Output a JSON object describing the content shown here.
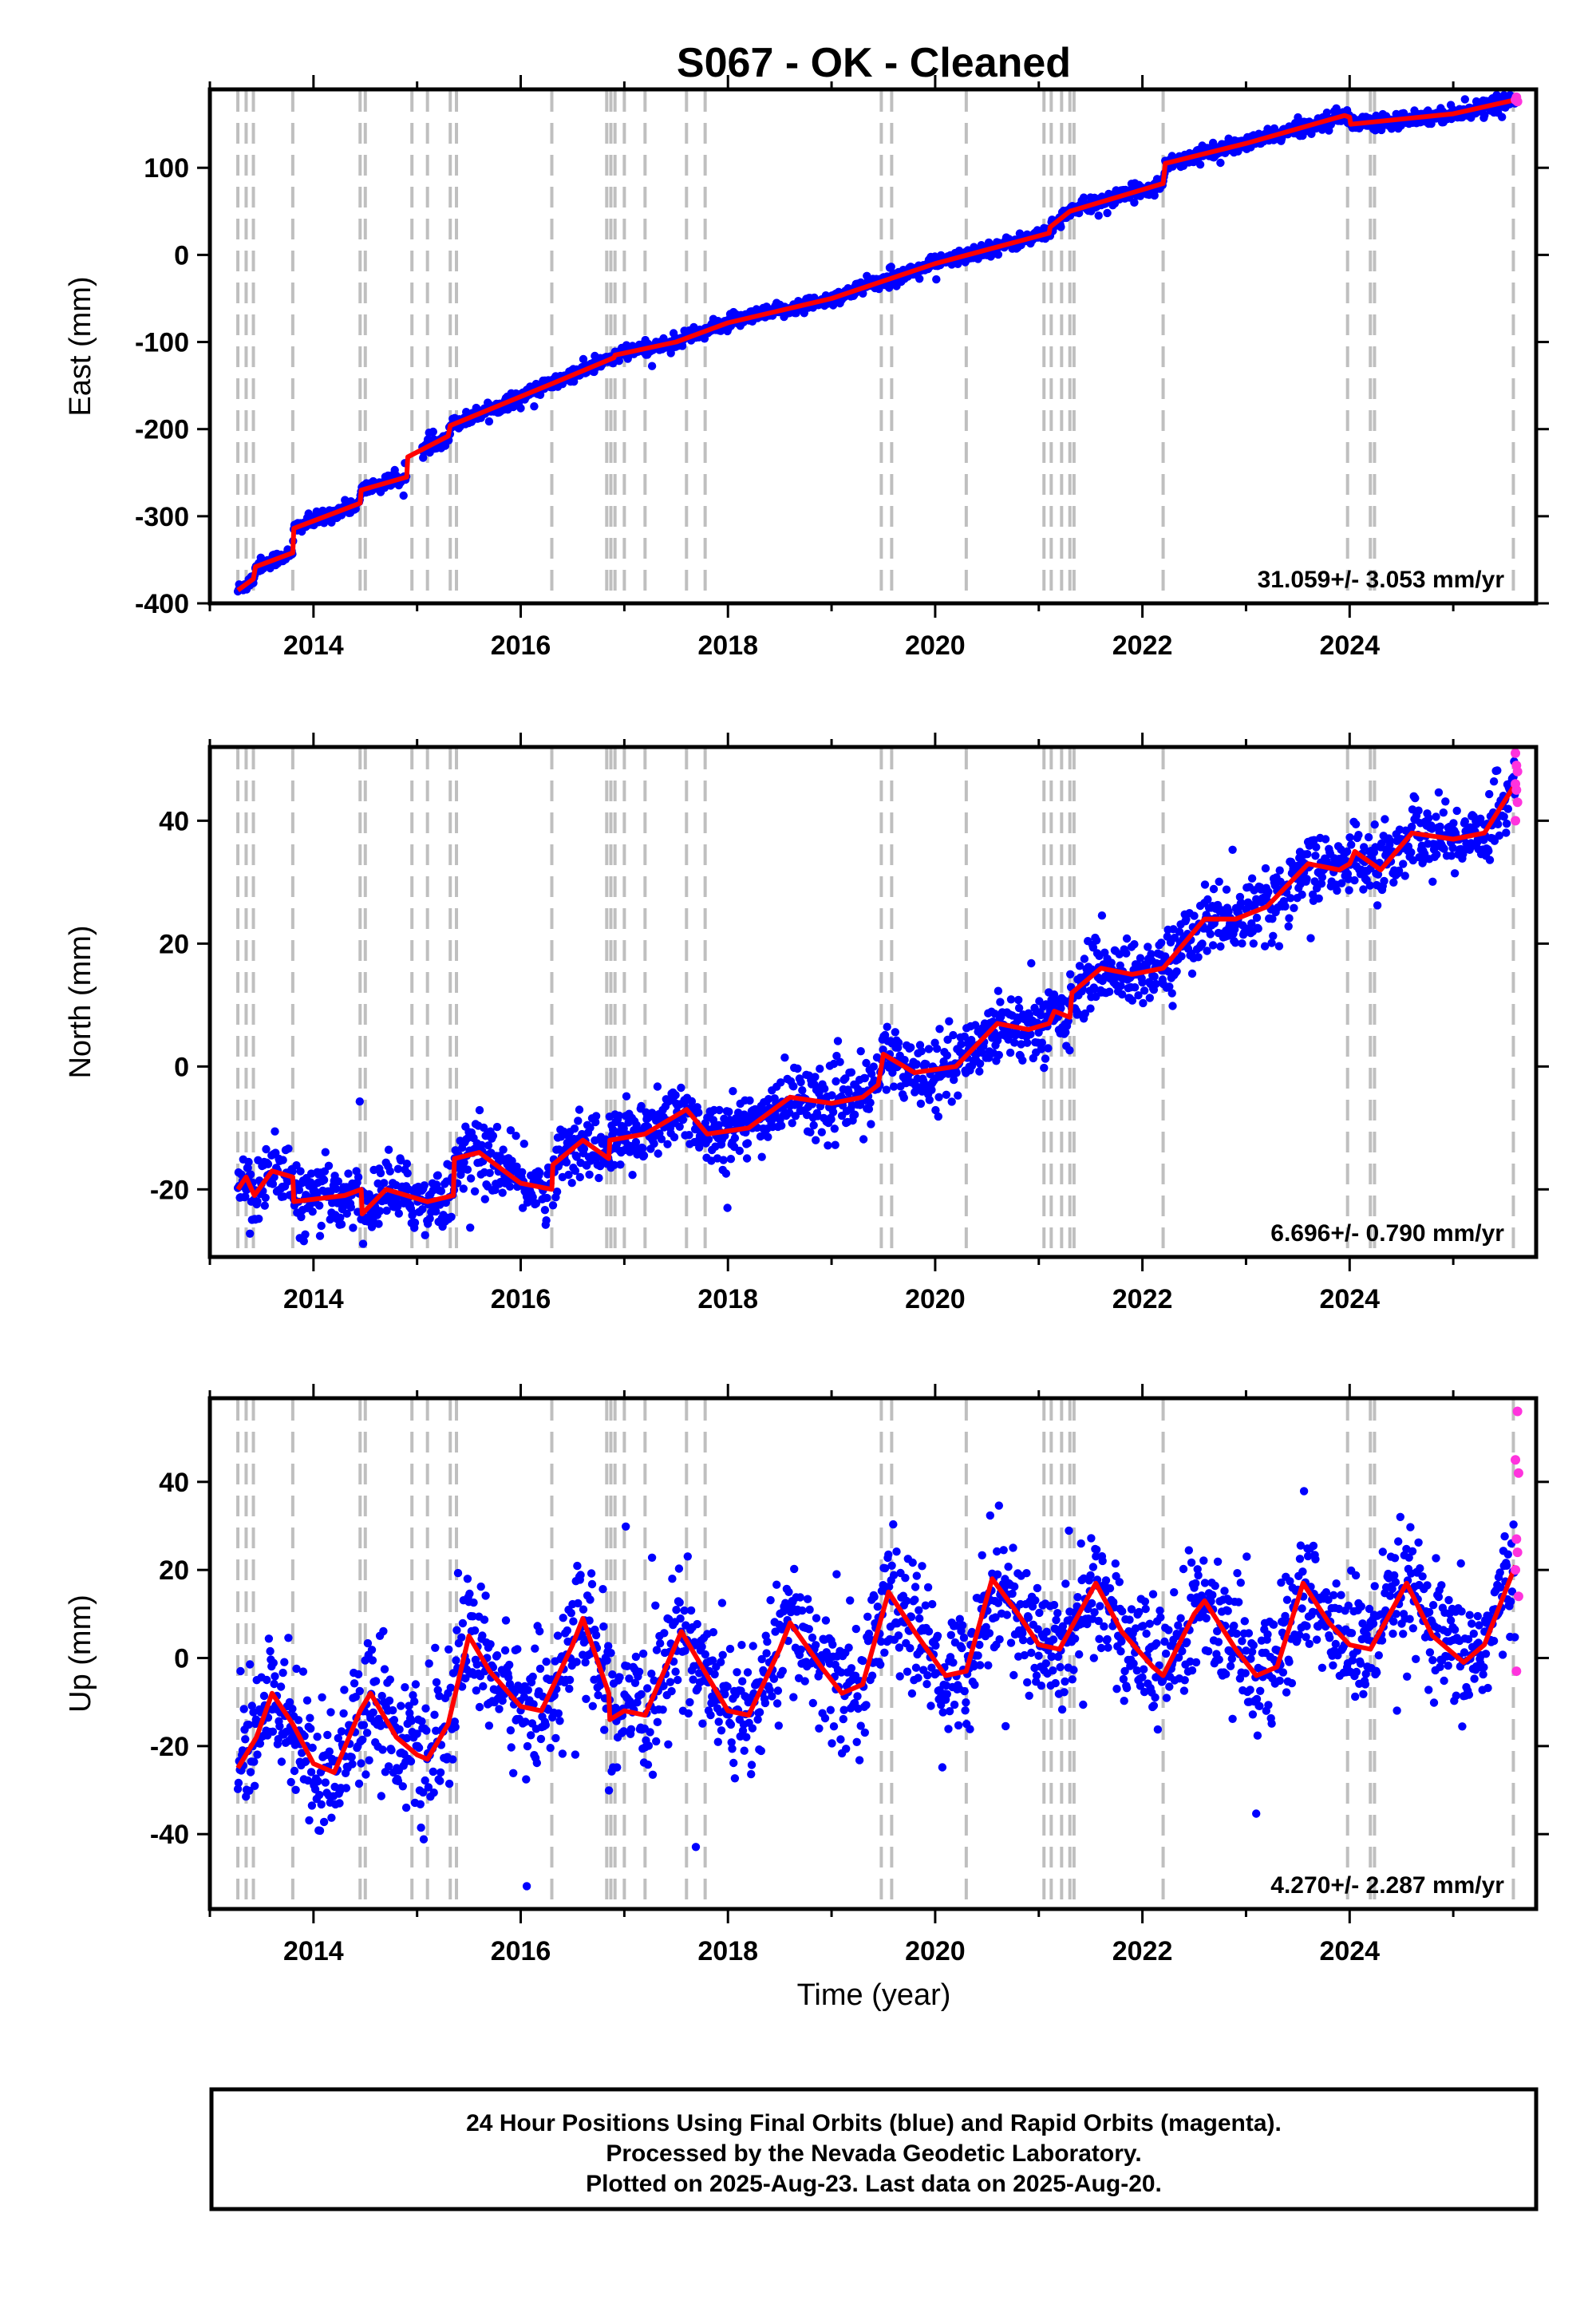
{
  "title": "S067  - OK - Cleaned",
  "xlabel": "Time (year)",
  "footer": [
    "24 Hour Positions Using Final Orbits (blue) and Rapid Orbits (magenta).",
    "Processed by the Nevada Geodetic Laboratory.",
    "Plotted on 2025-Aug-23. Last data on 2025-Aug-20."
  ],
  "colors": {
    "final": "#0000ff",
    "rapid": "#ff33dd",
    "model": "#ff0000",
    "event": "#bfbfbf",
    "frame": "#000000"
  },
  "chart_data": [
    {
      "type": "scatter",
      "ylabel": "East (mm)",
      "rate": "31.059+/- 3.053 mm/yr",
      "xlim": [
        2013.0,
        2025.8
      ],
      "ylim": [
        -400,
        190
      ],
      "yticks": [
        -400,
        -300,
        -200,
        -100,
        0,
        100
      ],
      "xticks": [
        2014,
        2016,
        2018,
        2020,
        2022,
        2024
      ],
      "model": [
        [
          2013.27,
          -385
        ],
        [
          2013.42,
          -372
        ],
        [
          2013.44,
          -358
        ],
        [
          2013.8,
          -342
        ],
        [
          2013.81,
          -314
        ],
        [
          2014.45,
          -285
        ],
        [
          2014.46,
          -270
        ],
        [
          2014.9,
          -255
        ],
        [
          2014.91,
          -232
        ],
        [
          2015.3,
          -208
        ],
        [
          2015.32,
          -196
        ],
        [
          2016.3,
          -148
        ],
        [
          2016.9,
          -118
        ],
        [
          2016.91,
          -115
        ],
        [
          2017.5,
          -100
        ],
        [
          2018.0,
          -78
        ],
        [
          2019.0,
          -50
        ],
        [
          2019.5,
          -30
        ],
        [
          2020.0,
          -10
        ],
        [
          2021.1,
          25
        ],
        [
          2021.11,
          32
        ],
        [
          2021.3,
          50
        ],
        [
          2022.2,
          82
        ],
        [
          2022.22,
          105
        ],
        [
          2023.0,
          128
        ],
        [
          2023.95,
          160
        ],
        [
          2024.0,
          158
        ],
        [
          2024.01,
          150
        ],
        [
          2025.0,
          162
        ],
        [
          2025.6,
          178
        ]
      ],
      "rapid_pts": [
        [
          2025.6,
          178
        ],
        [
          2025.62,
          176
        ],
        [
          2025.61,
          181
        ]
      ]
    },
    {
      "type": "scatter",
      "ylabel": "North (mm)",
      "rate": "6.696+/- 0.790 mm/yr",
      "xlim": [
        2013.0,
        2025.8
      ],
      "ylim": [
        -31,
        52
      ],
      "yticks": [
        -20,
        0,
        20,
        40
      ],
      "xticks": [
        2014,
        2016,
        2018,
        2020,
        2022,
        2024
      ],
      "model": [
        [
          2013.27,
          -20
        ],
        [
          2013.35,
          -18
        ],
        [
          2013.43,
          -21
        ],
        [
          2013.6,
          -17
        ],
        [
          2013.8,
          -18
        ],
        [
          2013.81,
          -22
        ],
        [
          2014.3,
          -21
        ],
        [
          2014.46,
          -20
        ],
        [
          2014.47,
          -24
        ],
        [
          2014.7,
          -20
        ],
        [
          2014.9,
          -21
        ],
        [
          2015.1,
          -22
        ],
        [
          2015.35,
          -21
        ],
        [
          2015.36,
          -15
        ],
        [
          2015.6,
          -14
        ],
        [
          2016.0,
          -19
        ],
        [
          2016.3,
          -20
        ],
        [
          2016.31,
          -16
        ],
        [
          2016.6,
          -12
        ],
        [
          2016.85,
          -15
        ],
        [
          2016.86,
          -12
        ],
        [
          2017.2,
          -11
        ],
        [
          2017.6,
          -7
        ],
        [
          2017.8,
          -11
        ],
        [
          2018.2,
          -10
        ],
        [
          2018.6,
          -5
        ],
        [
          2019.0,
          -6
        ],
        [
          2019.3,
          -5
        ],
        [
          2019.45,
          -3
        ],
        [
          2019.5,
          2
        ],
        [
          2019.8,
          -1
        ],
        [
          2020.2,
          0
        ],
        [
          2020.6,
          7
        ],
        [
          2020.9,
          6
        ],
        [
          2021.1,
          7
        ],
        [
          2021.15,
          9
        ],
        [
          2021.3,
          8
        ],
        [
          2021.32,
          12
        ],
        [
          2021.6,
          16
        ],
        [
          2021.9,
          15
        ],
        [
          2022.2,
          16
        ],
        [
          2022.6,
          24
        ],
        [
          2022.9,
          24
        ],
        [
          2023.2,
          26
        ],
        [
          2023.6,
          33
        ],
        [
          2023.9,
          32
        ],
        [
          2024.0,
          33
        ],
        [
          2024.05,
          35
        ],
        [
          2024.3,
          32
        ],
        [
          2024.6,
          38
        ],
        [
          2025.0,
          37
        ],
        [
          2025.3,
          38
        ],
        [
          2025.6,
          46
        ]
      ],
      "rapid_pts": [
        [
          2025.6,
          51
        ],
        [
          2025.61,
          49
        ],
        [
          2025.62,
          48
        ],
        [
          2025.6,
          46
        ],
        [
          2025.61,
          45
        ],
        [
          2025.62,
          43
        ],
        [
          2025.6,
          40
        ]
      ]
    },
    {
      "type": "scatter",
      "ylabel": "Up (mm)",
      "rate": "4.270+/- 2.287 mm/yr",
      "xlim": [
        2013.0,
        2025.8
      ],
      "ylim": [
        -57,
        59
      ],
      "yticks": [
        -40,
        -20,
        0,
        20,
        40
      ],
      "xticks": [
        2014,
        2016,
        2018,
        2020,
        2022,
        2024
      ],
      "model": [
        [
          2013.27,
          -25
        ],
        [
          2013.45,
          -18
        ],
        [
          2013.6,
          -8
        ],
        [
          2013.8,
          -15
        ],
        [
          2014.0,
          -24
        ],
        [
          2014.2,
          -26
        ],
        [
          2014.45,
          -12
        ],
        [
          2014.55,
          -8
        ],
        [
          2014.8,
          -18
        ],
        [
          2014.9,
          -20
        ],
        [
          2015.0,
          -22
        ],
        [
          2015.1,
          -23
        ],
        [
          2015.3,
          -15
        ],
        [
          2015.5,
          5
        ],
        [
          2015.7,
          -3
        ],
        [
          2016.0,
          -11
        ],
        [
          2016.2,
          -12
        ],
        [
          2016.5,
          3
        ],
        [
          2016.6,
          9
        ],
        [
          2016.85,
          -8
        ],
        [
          2016.86,
          -14
        ],
        [
          2017.0,
          -12
        ],
        [
          2017.2,
          -13
        ],
        [
          2017.55,
          6
        ],
        [
          2017.8,
          -4
        ],
        [
          2018.0,
          -12
        ],
        [
          2018.2,
          -13
        ],
        [
          2018.5,
          2
        ],
        [
          2018.6,
          8
        ],
        [
          2018.9,
          -2
        ],
        [
          2019.1,
          -8
        ],
        [
          2019.3,
          -6
        ],
        [
          2019.55,
          15
        ],
        [
          2019.8,
          6
        ],
        [
          2020.1,
          -4
        ],
        [
          2020.3,
          -3
        ],
        [
          2020.55,
          18
        ],
        [
          2020.8,
          10
        ],
        [
          2021.0,
          3
        ],
        [
          2021.2,
          2
        ],
        [
          2021.55,
          17
        ],
        [
          2021.8,
          6
        ],
        [
          2022.1,
          -2
        ],
        [
          2022.2,
          -4
        ],
        [
          2022.5,
          10
        ],
        [
          2022.6,
          13
        ],
        [
          2022.9,
          2
        ],
        [
          2023.1,
          -4
        ],
        [
          2023.3,
          -2
        ],
        [
          2023.55,
          17
        ],
        [
          2023.8,
          8
        ],
        [
          2024.0,
          3
        ],
        [
          2024.2,
          2
        ],
        [
          2024.55,
          17
        ],
        [
          2024.8,
          5
        ],
        [
          2025.1,
          -1
        ],
        [
          2025.3,
          3
        ],
        [
          2025.6,
          21
        ]
      ],
      "rapid_pts": [
        [
          2025.62,
          56
        ],
        [
          2025.6,
          45
        ],
        [
          2025.63,
          42
        ],
        [
          2025.61,
          27
        ],
        [
          2025.62,
          24
        ],
        [
          2025.6,
          20
        ],
        [
          2025.63,
          14
        ],
        [
          2025.61,
          -3
        ]
      ]
    }
  ],
  "events": [
    2013.27,
    2013.35,
    2013.42,
    2013.8,
    2014.45,
    2014.5,
    2014.95,
    2015.1,
    2015.32,
    2015.38,
    2016.3,
    2016.83,
    2016.87,
    2016.91,
    2017.0,
    2017.2,
    2017.6,
    2017.78,
    2019.48,
    2019.58,
    2020.3,
    2021.05,
    2021.12,
    2021.22,
    2021.3,
    2021.34,
    2022.2,
    2023.98,
    2024.2,
    2024.24,
    2025.58
  ]
}
